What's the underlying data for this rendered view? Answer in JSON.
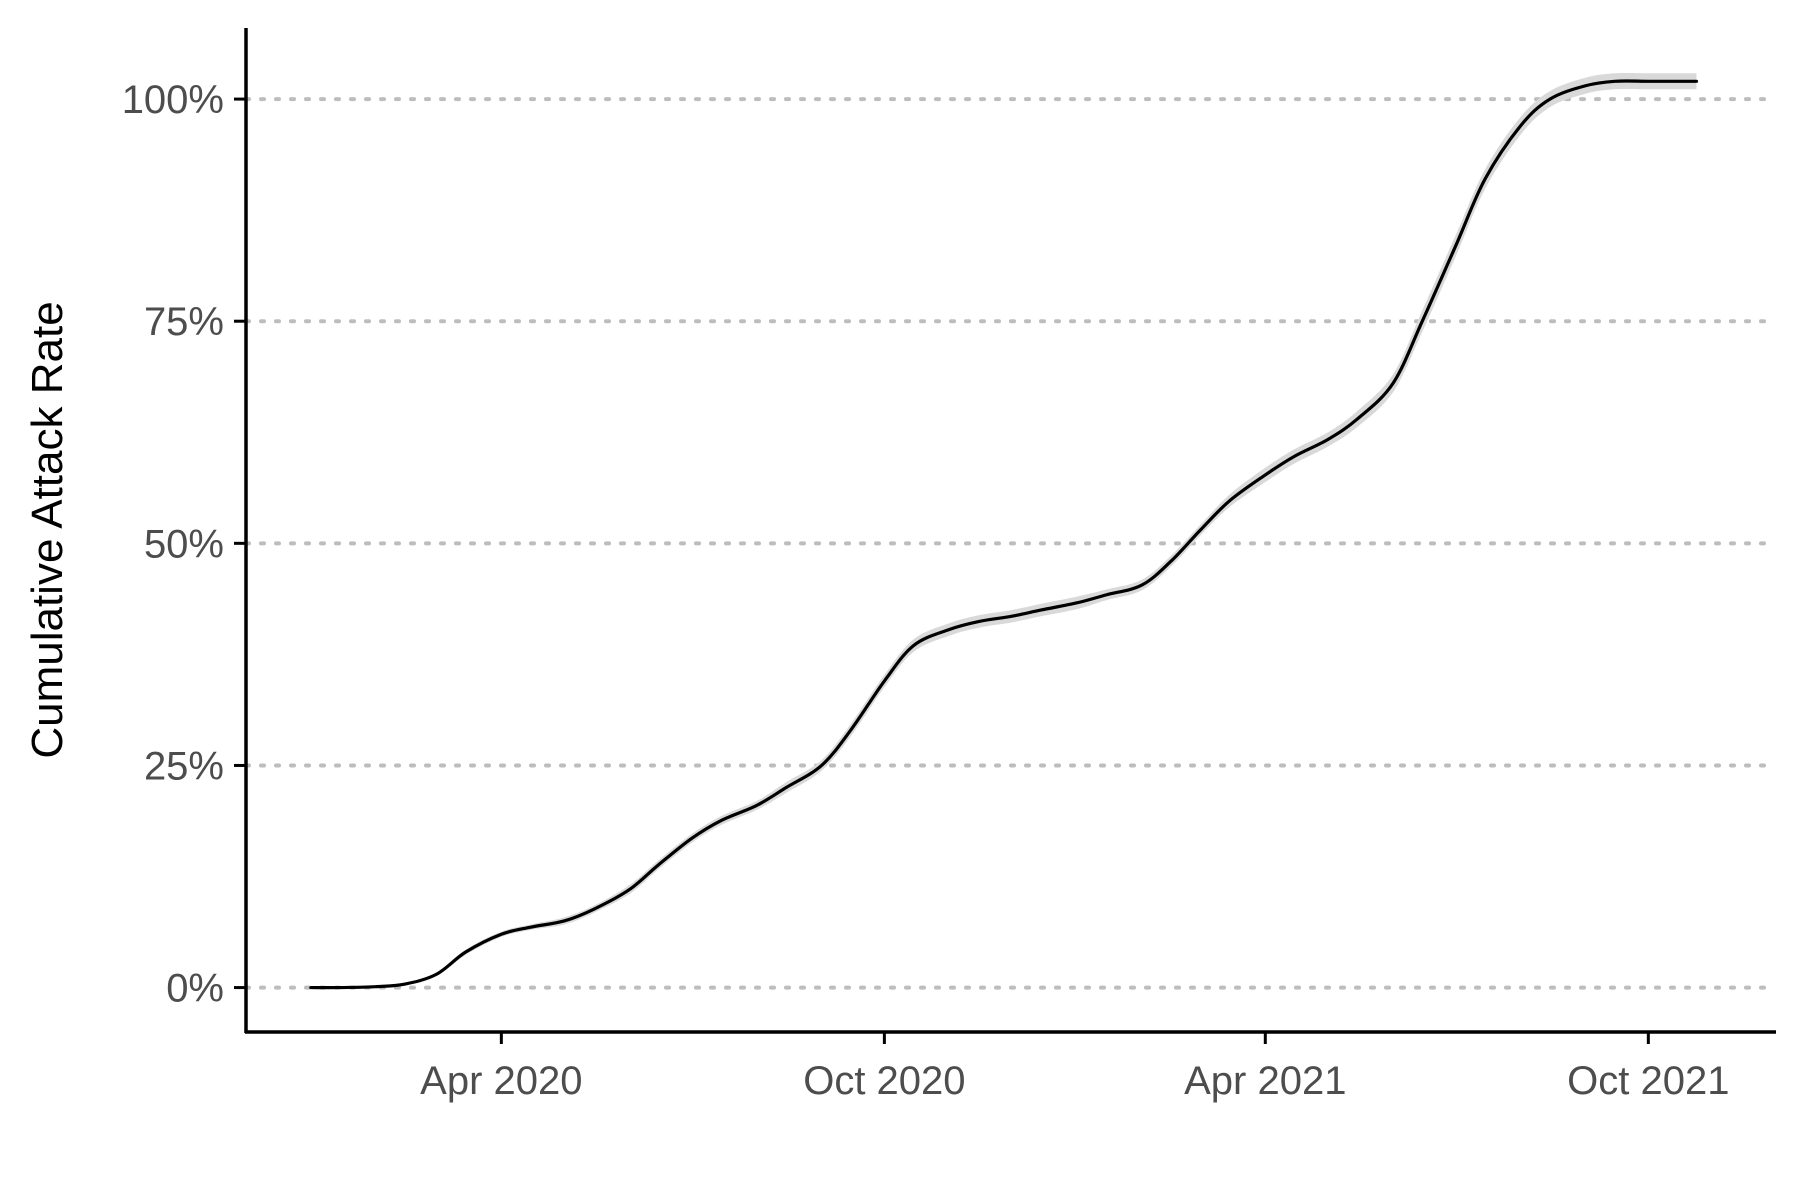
{
  "chart_data": {
    "type": "line",
    "title": "",
    "xlabel": "",
    "ylabel": "Cumulative Attack Rate",
    "x_type": "date",
    "xlim": [
      "2019-12-01",
      "2021-12-01"
    ],
    "ylim": [
      -0.05,
      1.08
    ],
    "x_ticks": [
      {
        "value": "2020-04-01",
        "label": "Apr 2020"
      },
      {
        "value": "2020-10-01",
        "label": "Oct 2020"
      },
      {
        "value": "2021-04-01",
        "label": "Apr 2021"
      },
      {
        "value": "2021-10-01",
        "label": "Oct 2021"
      }
    ],
    "y_ticks": [
      {
        "value": 0,
        "label": "0%"
      },
      {
        "value": 0.25,
        "label": "25%"
      },
      {
        "value": 0.5,
        "label": "50%"
      },
      {
        "value": 0.75,
        "label": "75%"
      },
      {
        "value": 1.0,
        "label": "100%"
      }
    ],
    "grid": {
      "horizontal": true,
      "vertical": false,
      "style": "dotted"
    },
    "colors": {
      "line": "#000000",
      "ribbon": "#d9d9d9",
      "grid": "#bdbdbd",
      "axis": "#000000",
      "tick_text": "#4d4d4d"
    },
    "series": [
      {
        "x": [
          "2020-01-01",
          "2020-01-15",
          "2020-02-01",
          "2020-02-15",
          "2020-03-01",
          "2020-03-15",
          "2020-04-01",
          "2020-04-15",
          "2020-05-01",
          "2020-05-15",
          "2020-06-01",
          "2020-06-15",
          "2020-07-01",
          "2020-07-15",
          "2020-08-01",
          "2020-08-15",
          "2020-09-01",
          "2020-09-15",
          "2020-10-01",
          "2020-10-15",
          "2020-11-01",
          "2020-11-15",
          "2020-12-01",
          "2020-12-15",
          "2021-01-01",
          "2021-01-15",
          "2021-02-01",
          "2021-02-15",
          "2021-03-01",
          "2021-03-15",
          "2021-04-01",
          "2021-04-15",
          "2021-05-01",
          "2021-05-15",
          "2021-06-01",
          "2021-06-15",
          "2021-07-01",
          "2021-07-15",
          "2021-08-01",
          "2021-08-15",
          "2021-09-01",
          "2021-09-15",
          "2021-10-01",
          "2021-10-15",
          "2021-10-24"
        ],
        "y": [
          0.0,
          0.0,
          0.001,
          0.004,
          0.015,
          0.04,
          0.06,
          0.068,
          0.075,
          0.088,
          0.11,
          0.138,
          0.168,
          0.188,
          0.205,
          0.225,
          0.25,
          0.29,
          0.345,
          0.385,
          0.403,
          0.412,
          0.418,
          0.425,
          0.433,
          0.442,
          0.453,
          0.48,
          0.515,
          0.548,
          0.577,
          0.598,
          0.617,
          0.64,
          0.68,
          0.75,
          0.835,
          0.91,
          0.97,
          1.0,
          1.015,
          1.02,
          1.02,
          1.02,
          1.02
        ],
        "lower": [
          0.0,
          0.0,
          0.001,
          0.003,
          0.013,
          0.037,
          0.057,
          0.065,
          0.071,
          0.084,
          0.105,
          0.133,
          0.163,
          0.183,
          0.2,
          0.219,
          0.244,
          0.283,
          0.338,
          0.378,
          0.396,
          0.405,
          0.411,
          0.418,
          0.426,
          0.436,
          0.447,
          0.474,
          0.509,
          0.541,
          0.569,
          0.59,
          0.609,
          0.631,
          0.67,
          0.738,
          0.823,
          0.899,
          0.96,
          0.991,
          1.006,
          1.011,
          1.011,
          1.011,
          1.011
        ],
        "upper": [
          0.0,
          0.0,
          0.001,
          0.005,
          0.017,
          0.043,
          0.063,
          0.071,
          0.079,
          0.092,
          0.115,
          0.143,
          0.173,
          0.193,
          0.21,
          0.231,
          0.256,
          0.297,
          0.352,
          0.392,
          0.41,
          0.419,
          0.425,
          0.432,
          0.44,
          0.448,
          0.459,
          0.486,
          0.521,
          0.555,
          0.585,
          0.606,
          0.625,
          0.649,
          0.69,
          0.762,
          0.847,
          0.921,
          0.98,
          1.009,
          1.024,
          1.029,
          1.029,
          1.029,
          1.029
        ]
      }
    ]
  }
}
